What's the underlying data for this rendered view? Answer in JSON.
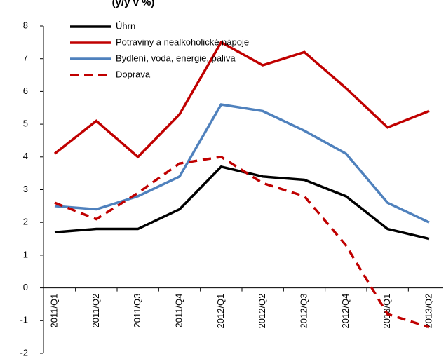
{
  "chart_data": {
    "type": "line",
    "title": "(y/y v %)",
    "categories": [
      "2011/Q1",
      "2011/Q2",
      "2011/Q3",
      "2011/Q4",
      "2012/Q1",
      "2012/Q2",
      "2012/Q3",
      "2012/Q4",
      "2013/Q1",
      "2013/Q2"
    ],
    "series": [
      {
        "name": "Úhrn",
        "color": "#000000",
        "dash": false,
        "values": [
          1.7,
          1.8,
          1.8,
          2.4,
          3.7,
          3.4,
          3.3,
          2.8,
          1.8,
          1.5
        ]
      },
      {
        "name": "Potraviny a nealkoholické nápoje",
        "color": "#c00000",
        "dash": false,
        "values": [
          4.1,
          5.1,
          4.0,
          5.3,
          7.5,
          6.8,
          7.2,
          6.1,
          4.9,
          5.4
        ]
      },
      {
        "name": "Bydlení, voda, energie, paliva",
        "color": "#4f81bd",
        "dash": false,
        "values": [
          2.5,
          2.4,
          2.8,
          3.4,
          5.6,
          5.4,
          4.8,
          4.1,
          2.6,
          2.0
        ]
      },
      {
        "name": "Doprava",
        "color": "#c00000",
        "dash": true,
        "values": [
          2.6,
          2.1,
          2.9,
          3.8,
          4.0,
          3.2,
          2.8,
          1.3,
          -0.8,
          -1.2
        ]
      }
    ],
    "ylim": [
      -2,
      8
    ],
    "yticks": [
      -2,
      -1,
      0,
      1,
      2,
      3,
      4,
      5,
      6,
      7,
      8
    ],
    "grid": false
  }
}
